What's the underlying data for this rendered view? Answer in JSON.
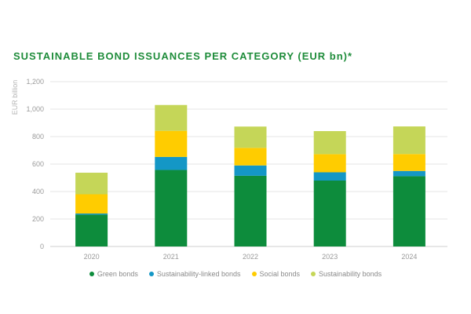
{
  "chart_data": {
    "type": "bar",
    "stacked": true,
    "title": "SUSTAINABLE BOND ISSUANCES PER CATEGORY (EUR bn)*",
    "ylabel": "EUR billion",
    "xlabel": "",
    "ylim": [
      0,
      1200
    ],
    "yticks": [
      0,
      200,
      400,
      600,
      800,
      1000,
      1200
    ],
    "ytick_labels": [
      "0",
      "200",
      "400",
      "600",
      "800",
      "1,000",
      "1,200"
    ],
    "categories": [
      "2020",
      "2021",
      "2022",
      "2023",
      "2024"
    ],
    "grid": true,
    "legend_position": "bottom",
    "series": [
      {
        "name": "Green bonds",
        "color": "#0d8c3c",
        "values": [
          232,
          557,
          515,
          480,
          512
        ]
      },
      {
        "name": "Sustainability-linked bonds",
        "color": "#1497c6",
        "values": [
          8,
          95,
          75,
          60,
          38
        ]
      },
      {
        "name": "Social bonds",
        "color": "#ffcc00",
        "values": [
          140,
          190,
          128,
          132,
          123
        ]
      },
      {
        "name": "Sustainability bonds",
        "color": "#c5d658",
        "values": [
          157,
          188,
          155,
          168,
          201
        ]
      }
    ]
  }
}
